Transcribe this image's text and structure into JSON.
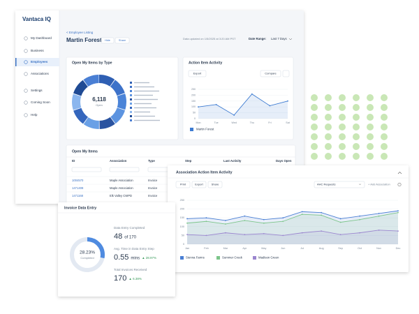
{
  "sidebar": {
    "logo": "Vantaca IQ",
    "nav": [
      "My Dashboard",
      "Business",
      "Employees",
      "Associations",
      "Settings",
      "Coming Soon",
      "Help"
    ]
  },
  "header": {
    "breadcrumb": "< Employee Listing",
    "title": "Martin Forest",
    "buttons": [
      "Hide",
      "Share"
    ],
    "updated": "Data updated on 1/5/2025 at 3:20 AM PST",
    "date_range_label": "Date Range:",
    "date_range": "Last 7 Days"
  },
  "open_items_by_type": {
    "title": "Open My Items by Type",
    "total": "6,118",
    "total_label": "Open"
  },
  "action_item_activity": {
    "title": "Action Item Activity",
    "buttons": [
      "Export",
      "Compare"
    ],
    "chart": {
      "type": "line",
      "categories": [
        "Mon",
        "Tue",
        "Wed",
        "Thu",
        "Fri",
        "Sat"
      ],
      "series": [
        {
          "name": "Martin Forest",
          "color": "#3d7bd1",
          "values": [
            100,
            120,
            30,
            210,
            110,
            150
          ]
        }
      ],
      "ylim": [
        0,
        250
      ],
      "yticks": [
        0,
        50,
        100,
        150,
        200,
        250
      ],
      "grid": true
    }
  },
  "open_items": {
    "title": "Open My Items",
    "columns": [
      "ID",
      "Association",
      "Type",
      "Step",
      "Last Activity",
      "Days Open"
    ],
    "rows": [
      [
        "1004570",
        "Maple Association",
        "Invoice"
      ],
      [
        "1471408",
        "Maple Association",
        "Invoice"
      ],
      [
        "1471168",
        "Elk Valley CWPD",
        "Invoice"
      ]
    ]
  },
  "association_activity": {
    "title": "Association Action Item Activity",
    "buttons": [
      "Print",
      "Export",
      "Share"
    ],
    "dropdown": "AHC Requests",
    "add_button": "+ Add Association",
    "chart": {
      "type": "line",
      "categories": [
        "Jan",
        "Feb",
        "Mar",
        "Apr",
        "May",
        "Jun",
        "Jul",
        "Aug",
        "Sep",
        "Oct",
        "Nov",
        "Dec"
      ],
      "series": [
        {
          "name": "Sienna Farms",
          "color": "#4a7fd4",
          "values": [
            145,
            150,
            135,
            160,
            140,
            150,
            185,
            180,
            145,
            160,
            175,
            190
          ]
        },
        {
          "name": "Summer Creek",
          "color": "#7cc58a",
          "values": [
            120,
            130,
            115,
            135,
            120,
            130,
            170,
            165,
            125,
            140,
            160,
            180
          ]
        },
        {
          "name": "Madison Green",
          "color": "#9b86cf",
          "values": [
            55,
            50,
            65,
            55,
            60,
            50,
            65,
            75,
            55,
            65,
            80,
            75
          ]
        }
      ],
      "ylim": [
        0,
        250
      ],
      "yticks": [
        0,
        50,
        100,
        150,
        200,
        250
      ],
      "grid": true
    }
  },
  "invoice_data_entry": {
    "title": "Invoice Data Entry",
    "percent": 28.23,
    "percent_label": "28.23%",
    "completed_label": "Completed",
    "stats": [
      {
        "label": "Data Entry Completed",
        "value": "48",
        "unit": "of 170"
      },
      {
        "label": "Avg. Time in Data Entry Step",
        "value": "0.55",
        "unit": "mins",
        "change": "▲ 28.97%"
      },
      {
        "label": "Total Invoices Received",
        "value": "170",
        "change": "▲ 6.38%"
      }
    ]
  }
}
